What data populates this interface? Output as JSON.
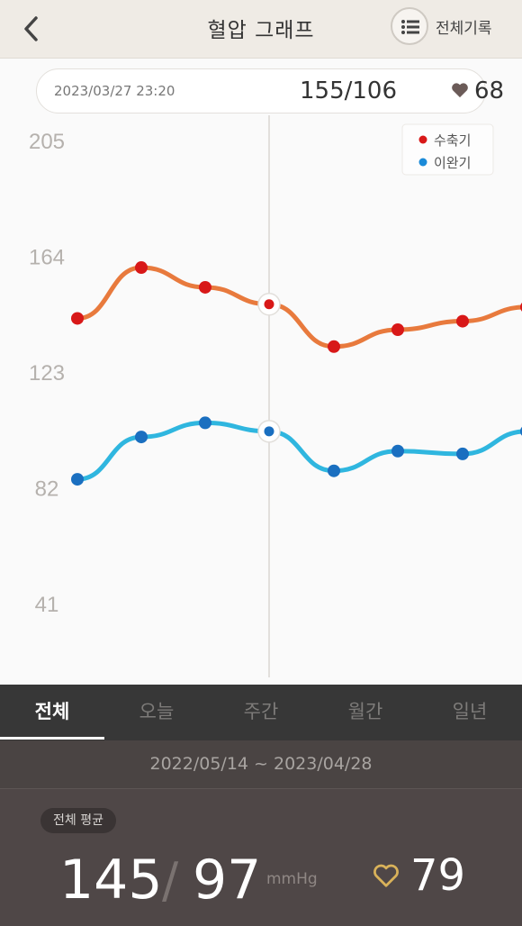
{
  "header": {
    "title": "혈압 그래프",
    "back_icon": "chevron-left-icon",
    "list_icon": "list-icon",
    "all_records_label": "전체기록"
  },
  "reading": {
    "datetime": "2023/03/27 23:20",
    "bp": "155/106",
    "heart_rate": "68"
  },
  "chart_data": {
    "type": "line",
    "y_ticks": [
      "205",
      "164",
      "123",
      "82",
      "41"
    ],
    "ylim": [
      41,
      205
    ],
    "legend": [
      "수축기",
      "이완기"
    ],
    "legend_placement": "top-right",
    "series": [
      {
        "name": "수축기",
        "color": "#e87a3d",
        "marker": "#d81818",
        "values": [
          142,
          160,
          153,
          147,
          132,
          138,
          141,
          146
        ]
      },
      {
        "name": "이완기",
        "color": "#2fb6df",
        "marker": "#1a6fc0",
        "values": [
          85,
          100,
          105,
          102,
          88,
          95,
          94,
          102
        ]
      }
    ],
    "highlighted_index": 3
  },
  "tabs": [
    "전체",
    "오늘",
    "주간",
    "월간",
    "일년"
  ],
  "active_tab": "전체",
  "date_range": "2022/05/14 ~ 2023/04/28",
  "summary": {
    "badge": "전체 평균",
    "systolic": "145",
    "slash": "/",
    "diastolic": "97",
    "unit": "mmHg",
    "heart_rate": "79"
  },
  "colors": {
    "systolic_line": "#e87a3d",
    "diastolic_line": "#2fb6df",
    "heart_outline": "#d9b25a"
  }
}
